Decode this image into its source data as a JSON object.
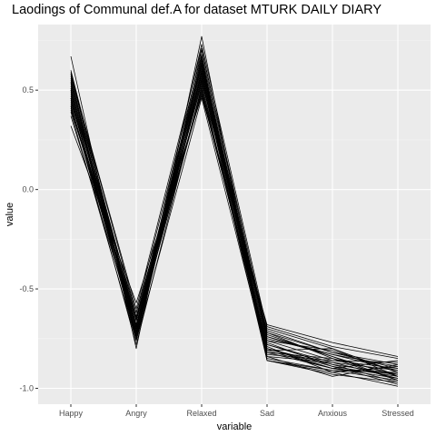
{
  "chart_data": {
    "type": "line",
    "title": "Laodings of Communal def.A for dataset MTURK DAILY DIARY",
    "xlabel": "variable",
    "ylabel": "value",
    "categories": [
      "Happy",
      "Angry",
      "Relaxed",
      "Sad",
      "Anxious",
      "Stressed"
    ],
    "ylim": [
      -1.08,
      0.83
    ],
    "yticks": [
      0.5,
      0.0,
      -0.5,
      -1.0
    ],
    "ytick_labels": [
      "0.5",
      "0.0",
      "-0.5",
      "-1.0"
    ],
    "grid": true,
    "background": "#EBEBEB",
    "line_color": "#000000",
    "series": [
      {
        "values": [
          0.67,
          -0.8,
          0.77,
          -0.86,
          -0.91,
          -0.96
        ]
      },
      {
        "values": [
          0.32,
          -0.57,
          0.47,
          -0.68,
          -0.77,
          -0.84
        ]
      },
      {
        "values": [
          0.6,
          -0.7,
          0.73,
          -0.7,
          -0.8,
          -0.92
        ]
      },
      {
        "values": [
          0.59,
          -0.75,
          0.7,
          -0.72,
          -0.82,
          -0.88
        ]
      },
      {
        "values": [
          0.58,
          -0.62,
          0.68,
          -0.74,
          -0.84,
          -0.94
        ]
      },
      {
        "values": [
          0.57,
          -0.66,
          0.66,
          -0.76,
          -0.86,
          -0.9
        ]
      },
      {
        "values": [
          0.56,
          -0.72,
          0.65,
          -0.78,
          -0.88,
          -0.97
        ]
      },
      {
        "values": [
          0.55,
          -0.68,
          0.64,
          -0.8,
          -0.9,
          -0.86
        ]
      },
      {
        "values": [
          0.54,
          -0.74,
          0.63,
          -0.82,
          -0.85,
          -0.93
        ]
      },
      {
        "values": [
          0.53,
          -0.64,
          0.62,
          -0.84,
          -0.87,
          -0.95
        ]
      },
      {
        "values": [
          0.52,
          -0.7,
          0.61,
          -0.75,
          -0.83,
          -0.91
        ]
      },
      {
        "values": [
          0.51,
          -0.76,
          0.6,
          -0.77,
          -0.89,
          -0.98
        ]
      },
      {
        "values": [
          0.5,
          -0.66,
          0.59,
          -0.79,
          -0.92,
          -0.89
        ]
      },
      {
        "values": [
          0.49,
          -0.72,
          0.58,
          -0.81,
          -0.8,
          -0.94
        ]
      },
      {
        "values": [
          0.48,
          -0.68,
          0.57,
          -0.83,
          -0.86,
          -0.87
        ]
      },
      {
        "values": [
          0.47,
          -0.74,
          0.56,
          -0.85,
          -0.91,
          -0.92
        ]
      },
      {
        "values": [
          0.46,
          -0.62,
          0.55,
          -0.73,
          -0.84,
          -0.96
        ]
      },
      {
        "values": [
          0.45,
          -0.7,
          0.54,
          -0.71,
          -0.82,
          -0.9
        ]
      },
      {
        "values": [
          0.44,
          -0.66,
          0.53,
          -0.86,
          -0.93,
          -0.97
        ]
      },
      {
        "values": [
          0.43,
          -0.78,
          0.52,
          -0.69,
          -0.79,
          -0.85
        ]
      },
      {
        "values": [
          0.42,
          -0.72,
          0.51,
          -0.8,
          -0.88,
          -0.93
        ]
      },
      {
        "values": [
          0.41,
          -0.68,
          0.5,
          -0.82,
          -0.9,
          -0.95
        ]
      },
      {
        "values": [
          0.4,
          -0.64,
          0.48,
          -0.78,
          -0.87,
          -0.91
        ]
      },
      {
        "values": [
          0.39,
          -0.76,
          0.46,
          -0.84,
          -0.94,
          -0.88
        ]
      },
      {
        "values": [
          0.58,
          -0.6,
          0.71,
          -0.76,
          -0.81,
          -0.92
        ]
      },
      {
        "values": [
          0.54,
          -0.73,
          0.67,
          -0.86,
          -0.92,
          -0.99
        ]
      },
      {
        "values": [
          0.5,
          -0.69,
          0.63,
          -0.74,
          -0.83,
          -0.89
        ]
      },
      {
        "values": [
          0.46,
          -0.75,
          0.59,
          -0.8,
          -0.89,
          -0.94
        ]
      },
      {
        "values": [
          0.42,
          -0.65,
          0.55,
          -0.72,
          -0.85,
          -0.96
        ]
      },
      {
        "values": [
          0.37,
          -0.71,
          0.49,
          -0.81,
          -0.9,
          -0.93
        ]
      }
    ]
  }
}
